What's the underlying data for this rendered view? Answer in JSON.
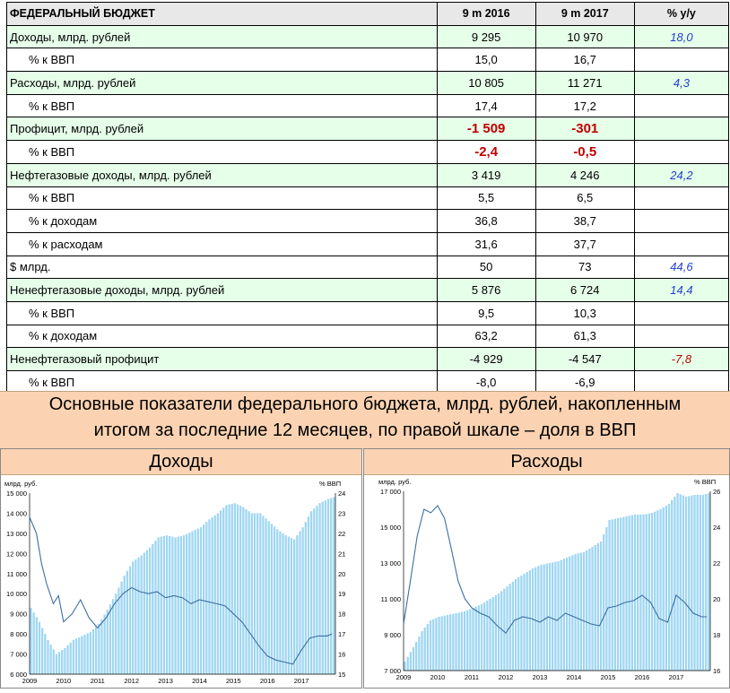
{
  "table": {
    "header": [
      "ФЕДЕРАЛЬНЫЙ БЮДЖЕТ",
      "9 m 2016",
      "9 m 2017",
      "% y/y"
    ],
    "rows": [
      {
        "label": "Доходы, млрд. рублей",
        "v2016": "9 295",
        "v2017": "10 970",
        "yy": "18,0",
        "style": "green",
        "yyColor": "blue"
      },
      {
        "label": "% к ВВП",
        "v2016": "15,0",
        "v2017": "16,7",
        "yy": "",
        "style": "sub"
      },
      {
        "label": "Расходы, млрд. рублей",
        "v2016": "10 805",
        "v2017": "11 271",
        "yy": "4,3",
        "style": "green",
        "yyColor": "blue"
      },
      {
        "label": "% к ВВП",
        "v2016": "17,4",
        "v2017": "17,2",
        "yy": "",
        "style": "sub"
      },
      {
        "label": "Профицит, млрд. рублей",
        "v2016": "-1 509",
        "v2017": "-301",
        "yy": "",
        "style": "green",
        "valColor": "red"
      },
      {
        "label": "% к ВВП",
        "v2016": "-2,4",
        "v2017": "-0,5",
        "yy": "",
        "style": "sub",
        "valColor": "red"
      },
      {
        "label": "Нефтегазовые доходы, млрд. рублей",
        "v2016": "3 419",
        "v2017": "4 246",
        "yy": "24,2",
        "style": "green",
        "yyColor": "blue"
      },
      {
        "label": "% к ВВП",
        "v2016": "5,5",
        "v2017": "6,5",
        "yy": "",
        "style": "sub"
      },
      {
        "label": "% к доходам",
        "v2016": "36,8",
        "v2017": "38,7",
        "yy": "",
        "style": "sub"
      },
      {
        "label": "% к расходам",
        "v2016": "31,6",
        "v2017": "37,7",
        "yy": "",
        "style": "sub"
      },
      {
        "label": "$ млрд.",
        "v2016": "50",
        "v2017": "73",
        "yy": "44,6",
        "style": "plain",
        "yyColor": "blue"
      },
      {
        "label": "Ненефтегазовые доходы, млрд. рублей",
        "v2016": "5 876",
        "v2017": "6 724",
        "yy": "14,4",
        "style": "green",
        "yyColor": "blue"
      },
      {
        "label": "% к ВВП",
        "v2016": "9,5",
        "v2017": "10,3",
        "yy": "",
        "style": "sub"
      },
      {
        "label": "% к доходам",
        "v2016": "63,2",
        "v2017": "61,3",
        "yy": "",
        "style": "sub"
      },
      {
        "label": "Ненефтегазовый профицит",
        "v2016": "-4 929",
        "v2017": "-4 547",
        "yy": "-7,8",
        "style": "green",
        "yyColor": "red"
      },
      {
        "label": "% к ВВП",
        "v2016": "-8,0",
        "v2017": "-6,9",
        "yy": "",
        "style": "sub"
      }
    ]
  },
  "caption": {
    "line1": "Основные показатели федерального бюджета, млрд. рублей, накопленным",
    "line2": "итогом за последние 12 месяцев, по правой шкале – доля в ВВП"
  },
  "colors": {
    "bars": "#9fd6f2",
    "line": "#3c6fa3",
    "red": "#c00000",
    "blue": "#1f3fd0",
    "header_bg": "#fbd3b2"
  },
  "chart_data": [
    {
      "type": "bar+line",
      "title": "Доходы",
      "ylabel": "млрд. руб.",
      "y2label": "% ВВП",
      "ylim": [
        6000,
        15000
      ],
      "yticks": [
        6000,
        7000,
        8000,
        9000,
        10000,
        11000,
        12000,
        13000,
        14000,
        15000
      ],
      "y2lim": [
        15,
        24
      ],
      "y2ticks": [
        15,
        16,
        17,
        18,
        19,
        20,
        21,
        22,
        23,
        24
      ],
      "xticks": [
        "2009",
        "2010",
        "2011",
        "2012",
        "2013",
        "2014",
        "2015",
        "2016",
        "2017"
      ],
      "x_start": 2009.0,
      "series": [
        {
          "name": "млрд. руб.",
          "kind": "bar",
          "axis": "left",
          "points": [
            [
              2009.0,
              9300
            ],
            [
              2009.25,
              8600
            ],
            [
              2009.5,
              7700
            ],
            [
              2009.75,
              7000
            ],
            [
              2010.0,
              7300
            ],
            [
              2010.25,
              7700
            ],
            [
              2010.5,
              7900
            ],
            [
              2010.75,
              8100
            ],
            [
              2011.0,
              8500
            ],
            [
              2011.25,
              9200
            ],
            [
              2011.5,
              10000
            ],
            [
              2011.75,
              10900
            ],
            [
              2012.0,
              11600
            ],
            [
              2012.25,
              11900
            ],
            [
              2012.5,
              12300
            ],
            [
              2012.75,
              12800
            ],
            [
              2013.0,
              12900
            ],
            [
              2013.25,
              12800
            ],
            [
              2013.5,
              12900
            ],
            [
              2013.75,
              13100
            ],
            [
              2014.0,
              13300
            ],
            [
              2014.25,
              13700
            ],
            [
              2014.5,
              14000
            ],
            [
              2014.75,
              14400
            ],
            [
              2015.0,
              14500
            ],
            [
              2015.25,
              14300
            ],
            [
              2015.5,
              14000
            ],
            [
              2015.75,
              14000
            ],
            [
              2016.0,
              13600
            ],
            [
              2016.25,
              13200
            ],
            [
              2016.5,
              12900
            ],
            [
              2016.75,
              12700
            ],
            [
              2017.0,
              13300
            ],
            [
              2017.25,
              14100
            ],
            [
              2017.5,
              14500
            ],
            [
              2017.75,
              14700
            ],
            [
              2017.9,
              14800
            ]
          ]
        },
        {
          "name": "% ВВП",
          "kind": "line",
          "axis": "right",
          "points": [
            [
              2009.0,
              22.8
            ],
            [
              2009.2,
              22.0
            ],
            [
              2009.35,
              20.5
            ],
            [
              2009.5,
              19.5
            ],
            [
              2009.7,
              18.5
            ],
            [
              2009.85,
              18.9
            ],
            [
              2010.0,
              17.6
            ],
            [
              2010.25,
              18.0
            ],
            [
              2010.5,
              18.7
            ],
            [
              2010.75,
              17.8
            ],
            [
              2011.0,
              17.3
            ],
            [
              2011.25,
              17.8
            ],
            [
              2011.5,
              18.5
            ],
            [
              2011.75,
              19.0
            ],
            [
              2012.0,
              19.3
            ],
            [
              2012.25,
              19.1
            ],
            [
              2012.5,
              19.0
            ],
            [
              2012.75,
              19.1
            ],
            [
              2013.0,
              18.8
            ],
            [
              2013.25,
              18.9
            ],
            [
              2013.5,
              18.8
            ],
            [
              2013.75,
              18.5
            ],
            [
              2014.0,
              18.7
            ],
            [
              2014.25,
              18.6
            ],
            [
              2014.5,
              18.5
            ],
            [
              2014.75,
              18.4
            ],
            [
              2015.0,
              18.0
            ],
            [
              2015.25,
              17.6
            ],
            [
              2015.5,
              17.0
            ],
            [
              2015.75,
              16.4
            ],
            [
              2016.0,
              15.9
            ],
            [
              2016.25,
              15.7
            ],
            [
              2016.5,
              15.6
            ],
            [
              2016.75,
              15.5
            ],
            [
              2017.0,
              16.2
            ],
            [
              2017.25,
              16.8
            ],
            [
              2017.5,
              16.9
            ],
            [
              2017.75,
              16.9
            ],
            [
              2017.9,
              17.0
            ]
          ]
        }
      ]
    },
    {
      "type": "bar+line",
      "title": "Расходы",
      "ylabel": "млрд. руб.",
      "y2label": "% ВВП",
      "ylim": [
        7000,
        17000
      ],
      "yticks": [
        7000,
        9000,
        11000,
        13000,
        15000,
        17000
      ],
      "y2lim": [
        16,
        26
      ],
      "y2ticks": [
        16,
        18,
        20,
        22,
        24,
        26
      ],
      "xticks": [
        "2009",
        "2010",
        "2011",
        "2012",
        "2013",
        "2014",
        "2015",
        "2016",
        "2017"
      ],
      "x_start": 2009.0,
      "series": [
        {
          "name": "млрд. руб.",
          "kind": "bar",
          "axis": "left",
          "points": [
            [
              2009.0,
              7500
            ],
            [
              2009.25,
              8300
            ],
            [
              2009.5,
              9200
            ],
            [
              2009.75,
              9800
            ],
            [
              2010.0,
              10000
            ],
            [
              2010.25,
              10100
            ],
            [
              2010.5,
              10200
            ],
            [
              2010.75,
              10300
            ],
            [
              2011.0,
              10500
            ],
            [
              2011.25,
              10700
            ],
            [
              2011.5,
              11000
            ],
            [
              2011.75,
              11300
            ],
            [
              2012.0,
              11700
            ],
            [
              2012.25,
              12100
            ],
            [
              2012.5,
              12400
            ],
            [
              2012.75,
              12700
            ],
            [
              2013.0,
              12900
            ],
            [
              2013.25,
              13000
            ],
            [
              2013.5,
              13100
            ],
            [
              2013.75,
              13300
            ],
            [
              2014.0,
              13500
            ],
            [
              2014.25,
              13600
            ],
            [
              2014.5,
              13900
            ],
            [
              2014.75,
              14200
            ],
            [
              2015.0,
              15400
            ],
            [
              2015.25,
              15500
            ],
            [
              2015.5,
              15600
            ],
            [
              2015.75,
              15700
            ],
            [
              2016.0,
              15700
            ],
            [
              2016.25,
              15800
            ],
            [
              2016.5,
              16000
            ],
            [
              2016.75,
              16300
            ],
            [
              2017.0,
              16900
            ],
            [
              2017.25,
              16700
            ],
            [
              2017.5,
              16800
            ],
            [
              2017.75,
              16800
            ],
            [
              2017.9,
              16900
            ]
          ]
        },
        {
          "name": "% ВВП",
          "kind": "line",
          "axis": "right",
          "points": [
            [
              2009.0,
              18.6
            ],
            [
              2009.2,
              21.0
            ],
            [
              2009.4,
              23.5
            ],
            [
              2009.6,
              25.0
            ],
            [
              2009.8,
              24.8
            ],
            [
              2010.0,
              25.2
            ],
            [
              2010.2,
              24.5
            ],
            [
              2010.4,
              22.8
            ],
            [
              2010.6,
              21.0
            ],
            [
              2010.8,
              20.0
            ],
            [
              2011.0,
              19.5
            ],
            [
              2011.25,
              19.2
            ],
            [
              2011.5,
              19.0
            ],
            [
              2011.75,
              18.5
            ],
            [
              2012.0,
              18.1
            ],
            [
              2012.25,
              18.8
            ],
            [
              2012.5,
              19.0
            ],
            [
              2012.75,
              18.9
            ],
            [
              2013.0,
              18.7
            ],
            [
              2013.25,
              19.0
            ],
            [
              2013.5,
              18.8
            ],
            [
              2013.75,
              19.2
            ],
            [
              2014.0,
              19.0
            ],
            [
              2014.25,
              18.8
            ],
            [
              2014.5,
              18.6
            ],
            [
              2014.75,
              18.5
            ],
            [
              2015.0,
              19.5
            ],
            [
              2015.25,
              19.6
            ],
            [
              2015.5,
              19.8
            ],
            [
              2015.75,
              19.9
            ],
            [
              2016.0,
              20.2
            ],
            [
              2016.25,
              19.8
            ],
            [
              2016.5,
              18.9
            ],
            [
              2016.75,
              18.7
            ],
            [
              2017.0,
              20.2
            ],
            [
              2017.25,
              19.8
            ],
            [
              2017.5,
              19.2
            ],
            [
              2017.75,
              19.0
            ],
            [
              2017.9,
              19.0
            ]
          ]
        }
      ]
    }
  ]
}
